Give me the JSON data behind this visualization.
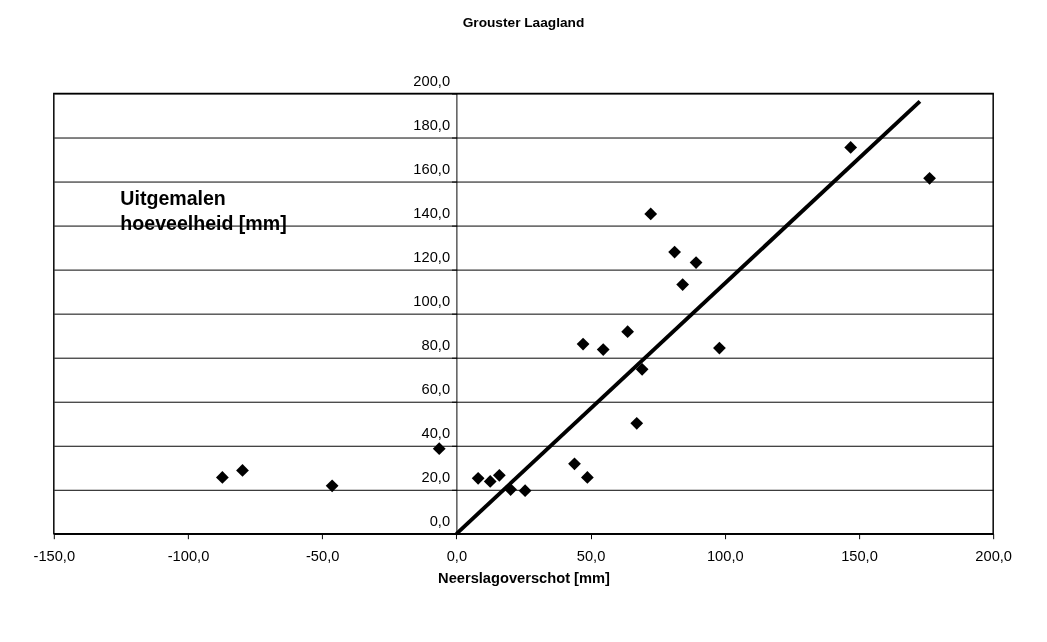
{
  "chart_data": {
    "type": "scatter",
    "title": "Grouster Laagland",
    "xlabel": "Neerslagoverschot [mm]",
    "ylabel": "Uitgemalen hoeveelheid [mm]",
    "xlim": [
      -150,
      200
    ],
    "ylim": [
      0,
      200
    ],
    "xticks": [
      {
        "value": -150,
        "label": "-150,0"
      },
      {
        "value": -100,
        "label": "-100,0"
      },
      {
        "value": -50,
        "label": "-50,0"
      },
      {
        "value": 0,
        "label": "0,0"
      },
      {
        "value": 50,
        "label": "50,0"
      },
      {
        "value": 100,
        "label": "100,0"
      },
      {
        "value": 150,
        "label": "150,0"
      },
      {
        "value": 200,
        "label": "200,0"
      }
    ],
    "yticks": [
      {
        "value": 0,
        "label": "0,0"
      },
      {
        "value": 20,
        "label": "20,0"
      },
      {
        "value": 40,
        "label": "40,0"
      },
      {
        "value": 60,
        "label": "60,0"
      },
      {
        "value": 80,
        "label": "80,0"
      },
      {
        "value": 100,
        "label": "100,0"
      },
      {
        "value": 120,
        "label": "120,0"
      },
      {
        "value": 140,
        "label": "140,0"
      },
      {
        "value": 160,
        "label": "160,0"
      },
      {
        "value": 180,
        "label": "180,0"
      },
      {
        "value": 200,
        "label": "200,0"
      }
    ],
    "grid": "y",
    "marker": "diamond",
    "series": [
      {
        "color": "#000000",
        "x": [
          -87.2,
          -79.7,
          -46.3,
          -6.4,
          8.1,
          12.6,
          16.0,
          20.2,
          25.6,
          44.0,
          48.8,
          47.2,
          54.7,
          63.8,
          69.2,
          67.2,
          98.0,
          72.4,
          81.3,
          89.3,
          84.3,
          146.9,
          176.3
        ],
        "values": [
          25.6,
          28.8,
          21.8,
          38.7,
          25.2,
          23.8,
          26.6,
          20.1,
          19.6,
          31.8,
          25.6,
          86.2,
          83.7,
          91.8,
          74.7,
          50.2,
          84.4,
          145.3,
          128.0,
          123.2,
          113.2,
          175.5,
          161.5
        ]
      },
      {
        "type": "line",
        "color": "#000000",
        "line_style": "solid",
        "marker": "none",
        "x": [
          0,
          172.7
        ],
        "values": [
          0,
          196.4
        ]
      }
    ]
  }
}
